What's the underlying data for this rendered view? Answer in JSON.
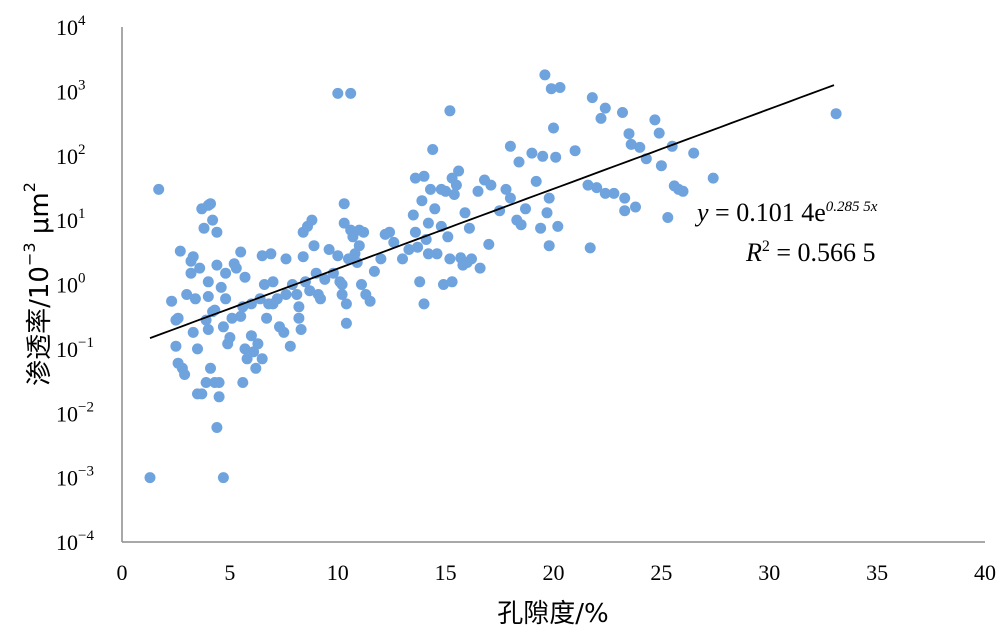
{
  "chart_data": {
    "type": "scatter",
    "xlabel": "孔隙度/%",
    "ylabel": {
      "prefix": "渗透率/10",
      "exp": "−3",
      "unit": " μm",
      "unit_exp": "2"
    },
    "xlim": [
      0,
      40
    ],
    "ylim": [
      0.0001,
      10000
    ],
    "y_scale": "log",
    "x_ticks": [
      "0",
      "5",
      "10",
      "15",
      "20",
      "25",
      "30",
      "35",
      "40"
    ],
    "y_ticks": [
      {
        "base": "10",
        "exp": "4"
      },
      {
        "base": "10",
        "exp": "3"
      },
      {
        "base": "10",
        "exp": "2"
      },
      {
        "base": "10",
        "exp": "1"
      },
      {
        "base": "10",
        "exp": "0"
      },
      {
        "base": "10",
        "exp": "−1"
      },
      {
        "base": "10",
        "exp": "−2"
      },
      {
        "base": "10",
        "exp": "−3"
      },
      {
        "base": "10",
        "exp": "−4"
      }
    ],
    "grid": false,
    "marker_color": "#6fa3de",
    "trendline_color": "#000000",
    "trendline": {
      "a": 0.1014,
      "b": 0.2855,
      "x_range": [
        1.3,
        33
      ]
    },
    "equation": {
      "lhs": "y",
      "rhs": " = 0.101 4e",
      "exp": "0.285 5x"
    },
    "r2": {
      "label": "R",
      "exp": "2",
      "rhs": " = 0.566 5"
    },
    "points": [
      [
        1.3,
        0.001
      ],
      [
        1.7,
        30
      ],
      [
        2.3,
        0.55
      ],
      [
        2.5,
        0.28
      ],
      [
        2.6,
        0.3
      ],
      [
        2.7,
        3.3
      ],
      [
        2.5,
        0.11
      ],
      [
        2.6,
        0.06
      ],
      [
        2.8,
        0.05
      ],
      [
        2.9,
        0.04
      ],
      [
        3.0,
        0.7
      ],
      [
        3.2,
        1.5
      ],
      [
        3.2,
        2.3
      ],
      [
        3.3,
        2.7
      ],
      [
        3.3,
        0.18
      ],
      [
        3.4,
        0.6
      ],
      [
        3.5,
        0.1
      ],
      [
        3.5,
        0.02
      ],
      [
        3.6,
        1.8
      ],
      [
        3.7,
        0.02
      ],
      [
        3.7,
        15
      ],
      [
        3.8,
        7.5
      ],
      [
        3.9,
        0.03
      ],
      [
        3.9,
        0.28
      ],
      [
        4.0,
        0.2
      ],
      [
        4.0,
        0.65
      ],
      [
        4.0,
        1.1
      ],
      [
        4.0,
        17
      ],
      [
        4.1,
        18
      ],
      [
        4.1,
        0.05
      ],
      [
        4.2,
        0.38
      ],
      [
        4.2,
        10
      ],
      [
        4.3,
        0.03
      ],
      [
        4.3,
        0.4
      ],
      [
        4.4,
        2.0
      ],
      [
        4.4,
        6.5
      ],
      [
        4.4,
        0.006
      ],
      [
        4.5,
        0.03
      ],
      [
        4.5,
        0.018
      ],
      [
        4.6,
        0.9
      ],
      [
        4.7,
        0.001
      ],
      [
        4.7,
        0.22
      ],
      [
        4.8,
        0.6
      ],
      [
        4.8,
        1.5
      ],
      [
        4.9,
        0.12
      ],
      [
        5.0,
        0.15
      ],
      [
        5.1,
        0.3
      ],
      [
        5.2,
        2.1
      ],
      [
        5.3,
        1.8
      ],
      [
        5.5,
        3.2
      ],
      [
        5.5,
        0.32
      ],
      [
        5.6,
        0.45
      ],
      [
        5.6,
        0.03
      ],
      [
        5.7,
        1.3
      ],
      [
        5.7,
        0.1
      ],
      [
        5.8,
        0.07
      ],
      [
        6.0,
        0.5
      ],
      [
        6.0,
        0.16
      ],
      [
        6.1,
        0.09
      ],
      [
        6.2,
        0.05
      ],
      [
        6.3,
        0.12
      ],
      [
        6.4,
        0.6
      ],
      [
        6.5,
        2.8
      ],
      [
        6.5,
        0.07
      ],
      [
        6.6,
        1.0
      ],
      [
        6.7,
        0.3
      ],
      [
        6.8,
        0.5
      ],
      [
        6.9,
        3.0
      ],
      [
        7.0,
        1.1
      ],
      [
        7.0,
        0.5
      ],
      [
        7.2,
        0.6
      ],
      [
        7.3,
        0.22
      ],
      [
        7.5,
        0.18
      ],
      [
        7.6,
        2.5
      ],
      [
        7.6,
        0.7
      ],
      [
        7.8,
        0.11
      ],
      [
        7.9,
        1.0
      ],
      [
        8.1,
        0.7
      ],
      [
        8.2,
        0.3
      ],
      [
        8.2,
        0.45
      ],
      [
        8.3,
        0.2
      ],
      [
        8.4,
        2.7
      ],
      [
        8.4,
        6.5
      ],
      [
        8.5,
        1.1
      ],
      [
        8.6,
        8.0
      ],
      [
        8.7,
        0.8
      ],
      [
        8.8,
        10
      ],
      [
        8.9,
        4.0
      ],
      [
        9.0,
        1.5
      ],
      [
        9.1,
        0.7
      ],
      [
        9.2,
        0.6
      ],
      [
        9.4,
        1.2
      ],
      [
        9.6,
        3.5
      ],
      [
        9.8,
        1.5
      ],
      [
        10.0,
        2.8
      ],
      [
        10.0,
        930
      ],
      [
        10.1,
        1.1
      ],
      [
        10.2,
        0.7
      ],
      [
        10.2,
        1.0
      ],
      [
        10.3,
        9.0
      ],
      [
        10.3,
        18
      ],
      [
        10.4,
        0.5
      ],
      [
        10.4,
        0.25
      ],
      [
        10.5,
        2.5
      ],
      [
        10.6,
        930
      ],
      [
        10.6,
        7.0
      ],
      [
        10.7,
        5.5
      ],
      [
        10.8,
        3.0
      ],
      [
        10.9,
        2.2
      ],
      [
        11.0,
        4.0
      ],
      [
        11.0,
        7.0
      ],
      [
        11.1,
        1.0
      ],
      [
        11.2,
        6.5
      ],
      [
        11.3,
        0.7
      ],
      [
        11.5,
        0.55
      ],
      [
        11.7,
        1.6
      ],
      [
        12.0,
        2.5
      ],
      [
        12.2,
        6.0
      ],
      [
        12.4,
        6.5
      ],
      [
        12.6,
        4.5
      ],
      [
        13.0,
        2.5
      ],
      [
        13.3,
        3.5
      ],
      [
        13.5,
        12
      ],
      [
        13.6,
        6.5
      ],
      [
        13.6,
        45
      ],
      [
        13.7,
        3.8
      ],
      [
        13.8,
        1.1
      ],
      [
        13.9,
        20
      ],
      [
        14.0,
        0.5
      ],
      [
        14.0,
        48
      ],
      [
        14.1,
        5.0
      ],
      [
        14.2,
        3.0
      ],
      [
        14.2,
        9.0
      ],
      [
        14.3,
        30
      ],
      [
        14.4,
        125
      ],
      [
        14.5,
        15
      ],
      [
        14.6,
        3.0
      ],
      [
        14.8,
        30
      ],
      [
        14.8,
        8.0
      ],
      [
        14.9,
        1.0
      ],
      [
        15.0,
        28
      ],
      [
        15.1,
        5.5
      ],
      [
        15.2,
        2.5
      ],
      [
        15.2,
        500
      ],
      [
        15.3,
        1.1
      ],
      [
        15.3,
        45
      ],
      [
        15.4,
        25
      ],
      [
        15.5,
        35
      ],
      [
        15.6,
        58
      ],
      [
        15.7,
        2.6
      ],
      [
        15.8,
        2.0
      ],
      [
        15.9,
        13
      ],
      [
        16.0,
        2.2
      ],
      [
        16.1,
        7.5
      ],
      [
        16.2,
        2.5
      ],
      [
        16.5,
        28
      ],
      [
        16.6,
        1.8
      ],
      [
        16.8,
        42
      ],
      [
        17.0,
        4.2
      ],
      [
        17.1,
        35
      ],
      [
        17.5,
        14
      ],
      [
        17.8,
        30
      ],
      [
        18.0,
        140
      ],
      [
        18.0,
        22
      ],
      [
        18.3,
        10
      ],
      [
        18.4,
        80
      ],
      [
        18.5,
        8.5
      ],
      [
        18.7,
        15
      ],
      [
        19.0,
        110
      ],
      [
        19.2,
        40
      ],
      [
        19.4,
        7.5
      ],
      [
        19.5,
        98
      ],
      [
        19.6,
        1800
      ],
      [
        19.7,
        13
      ],
      [
        19.8,
        22
      ],
      [
        19.8,
        4.0
      ],
      [
        19.9,
        1100
      ],
      [
        20.0,
        270
      ],
      [
        20.1,
        95
      ],
      [
        20.2,
        8.0
      ],
      [
        20.3,
        1150
      ],
      [
        21.0,
        120
      ],
      [
        21.6,
        35
      ],
      [
        21.7,
        3.7
      ],
      [
        21.8,
        800
      ],
      [
        22.0,
        32
      ],
      [
        22.2,
        380
      ],
      [
        22.4,
        550
      ],
      [
        22.4,
        26
      ],
      [
        22.8,
        26
      ],
      [
        23.2,
        470
      ],
      [
        23.3,
        14
      ],
      [
        23.3,
        22
      ],
      [
        23.5,
        220
      ],
      [
        23.6,
        150
      ],
      [
        23.8,
        16
      ],
      [
        24.0,
        135
      ],
      [
        24.3,
        90
      ],
      [
        24.7,
        360
      ],
      [
        24.9,
        225
      ],
      [
        25.0,
        70
      ],
      [
        25.3,
        11
      ],
      [
        25.5,
        140
      ],
      [
        25.6,
        34
      ],
      [
        25.8,
        30
      ],
      [
        26.0,
        28
      ],
      [
        26.5,
        110
      ],
      [
        27.4,
        45
      ],
      [
        33.1,
        450
      ]
    ]
  }
}
